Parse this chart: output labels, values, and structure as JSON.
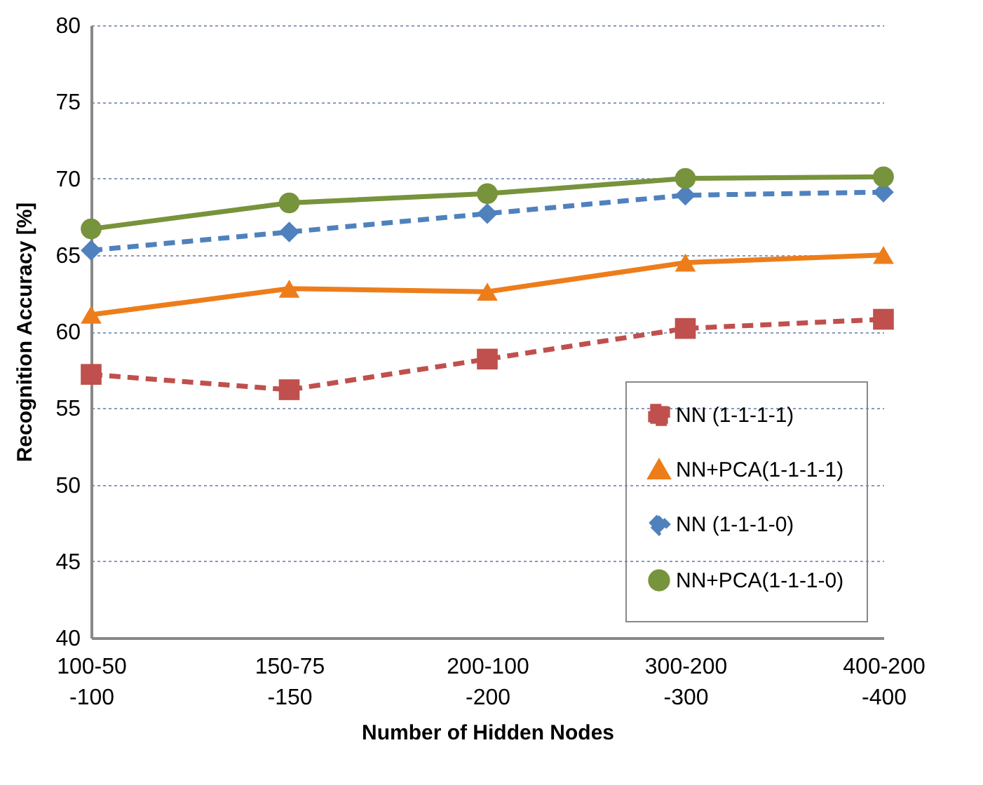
{
  "chart_data": {
    "type": "line",
    "xlabel": "Number of Hidden Nodes",
    "ylabel": "Recognition Accuracy  [%]",
    "categories": [
      "100-50\n-100",
      "150-75\n-150",
      "200-100\n-200",
      "300-200\n-300",
      "400-200\n-400"
    ],
    "series": [
      {
        "name": "NN (1-1-1-1)",
        "color": "#c0504d",
        "marker": "square",
        "line_style": "dashed",
        "values": [
          57.2,
          56.2,
          58.2,
          60.2,
          60.8
        ]
      },
      {
        "name": "NN+PCA(1-1-1-1)",
        "color": "#ed7d1a",
        "marker": "triangle",
        "line_style": "solid",
        "values": [
          61.1,
          62.8,
          62.6,
          64.5,
          65.0
        ]
      },
      {
        "name": "NN (1-1-1-0)",
        "color": "#4f81bd",
        "marker": "diamond",
        "line_style": "dashed",
        "values": [
          65.3,
          66.5,
          67.7,
          68.9,
          69.1
        ]
      },
      {
        "name": "NN+PCA(1-1-1-0)",
        "color": "#77933c",
        "marker": "circle",
        "line_style": "solid",
        "values": [
          66.7,
          68.4,
          69.0,
          70.0,
          70.1
        ]
      }
    ],
    "ylim": [
      40,
      80
    ],
    "yticks": [
      40,
      45,
      50,
      55,
      60,
      65,
      70,
      75,
      80
    ],
    "grid": "y",
    "legend": "bottom right"
  }
}
